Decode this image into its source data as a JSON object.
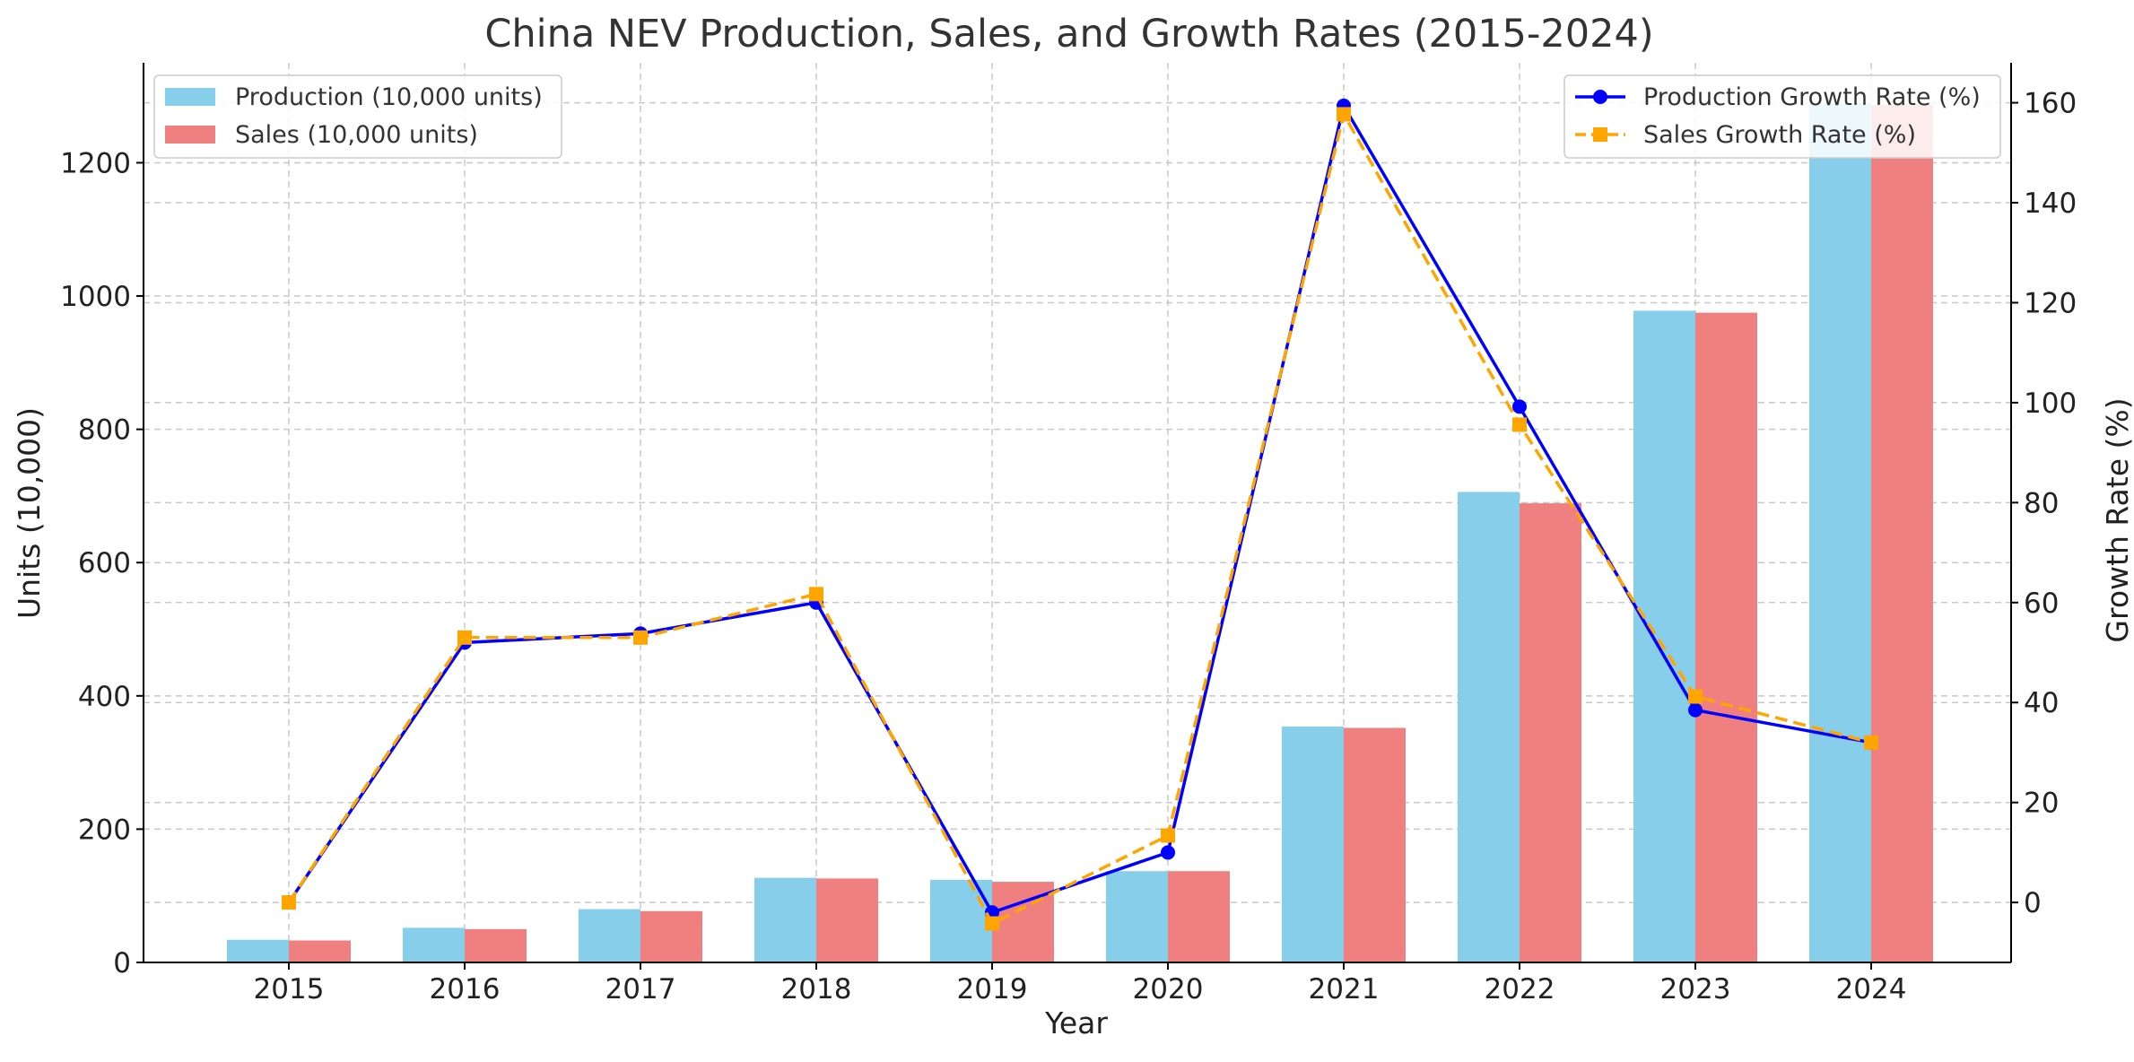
{
  "chart_data": {
    "type": "bar",
    "title": "China NEV Production, Sales, and Growth Rates (2015-2024)",
    "xlabel": "Year",
    "ylabel": "Units (10,000)",
    "y2label": "Growth Rate (%)",
    "categories": [
      "2015",
      "2016",
      "2017",
      "2018",
      "2019",
      "2020",
      "2021",
      "2022",
      "2023",
      "2024"
    ],
    "ylim": [
      0,
      1350
    ],
    "y_ticks": [
      0,
      200,
      400,
      600,
      800,
      1000,
      1200
    ],
    "y2lim": [
      -12,
      168
    ],
    "y2_ticks": [
      0,
      20,
      40,
      60,
      80,
      100,
      120,
      140,
      160
    ],
    "grid": true,
    "series": [
      {
        "name": "Production (10,000 units)",
        "kind": "bar",
        "color": "#87CEEB",
        "values": [
          34,
          52,
          80,
          127,
          124,
          137,
          354,
          706,
          978,
          1289
        ]
      },
      {
        "name": "Sales (10,000 units)",
        "kind": "bar",
        "color": "#F08080",
        "values": [
          33,
          50,
          77,
          126,
          121,
          137,
          352,
          689,
          975,
          1287
        ]
      },
      {
        "name": "Production Growth Rate (%)",
        "kind": "line",
        "axis": "right",
        "color": "#0000FF",
        "style": "solid",
        "marker": "circle",
        "values": [
          0,
          52,
          53.8,
          60,
          -2,
          10,
          159.4,
          99.2,
          38.5,
          32
        ]
      },
      {
        "name": "Sales Growth Rate (%)",
        "kind": "line",
        "axis": "right",
        "color": "#FFA500",
        "style": "dashed",
        "marker": "square",
        "values": [
          0,
          53,
          53,
          61.7,
          -4.2,
          13.4,
          157.7,
          95.6,
          41.2,
          32
        ]
      }
    ],
    "legend_left_position": "top-left",
    "legend_right_position": "top-right"
  }
}
